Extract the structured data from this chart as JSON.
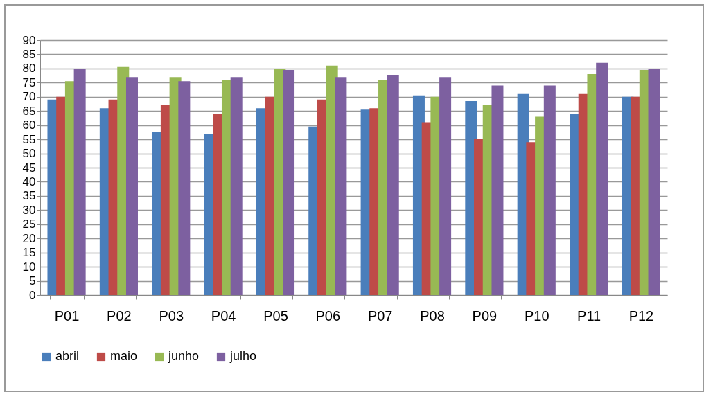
{
  "chart_data": {
    "type": "bar",
    "categories": [
      "P01",
      "P02",
      "P03",
      "P04",
      "P05",
      "P06",
      "P07",
      "P08",
      "P09",
      "P10",
      "P11",
      "P12"
    ],
    "series": [
      {
        "name": "abril",
        "color": "#4a7ebb",
        "values": [
          69,
          66,
          57.5,
          57,
          66,
          59.5,
          65.5,
          70.5,
          68.5,
          71,
          64,
          70
        ]
      },
      {
        "name": "maio",
        "color": "#be4b48",
        "values": [
          70,
          69,
          67,
          64,
          70,
          69,
          66,
          61,
          55,
          54,
          71,
          70
        ]
      },
      {
        "name": "junho",
        "color": "#98b954",
        "values": [
          75.5,
          80.5,
          77,
          76,
          80,
          81,
          76,
          70,
          67,
          63,
          78,
          79.5
        ]
      },
      {
        "name": "julho",
        "color": "#7d60a0",
        "values": [
          80,
          77,
          75.5,
          77,
          79.5,
          77,
          77.5,
          77,
          74,
          74,
          82,
          80
        ]
      }
    ],
    "ylim": [
      0,
      90
    ],
    "yticks": [
      0,
      5,
      10,
      15,
      20,
      25,
      30,
      35,
      40,
      45,
      50,
      55,
      60,
      65,
      70,
      75,
      80,
      85,
      90
    ],
    "grid": "y",
    "legend": "bottom"
  }
}
